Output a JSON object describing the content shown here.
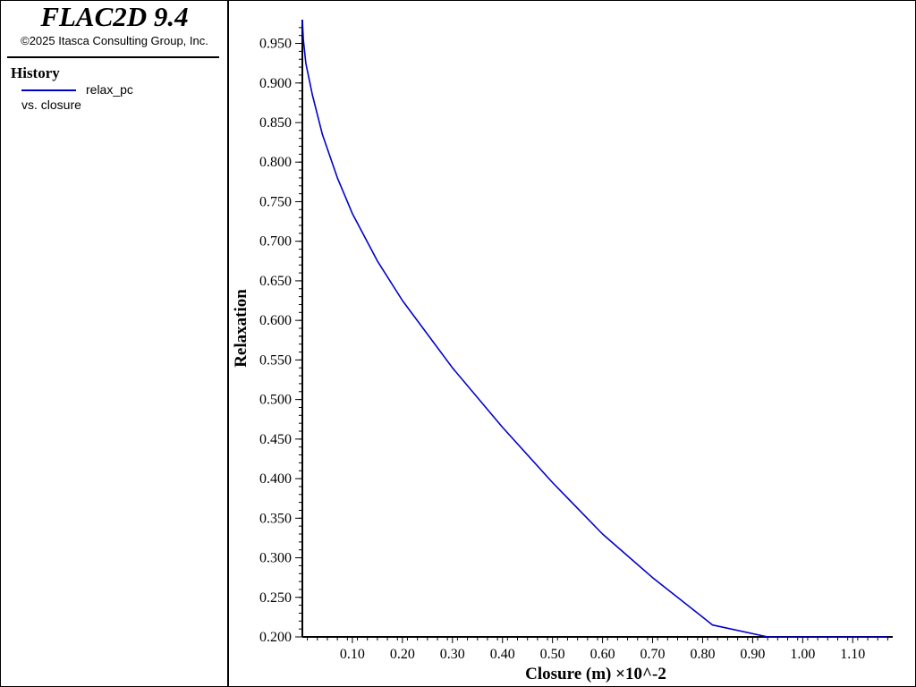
{
  "app": {
    "title": "FLAC2D 9.4",
    "copyright": "©2025 Itasca Consulting Group, Inc."
  },
  "legend": {
    "heading": "History",
    "series_label": "relax_pc",
    "vs_label": "vs. closure",
    "line_color": "#0000cc"
  },
  "chart_data": {
    "type": "line",
    "xlabel": "Closure (m) ×10^-2",
    "ylabel": "Relaxation",
    "xlim": [
      0.0,
      1.18
    ],
    "ylim": [
      0.2,
      0.98
    ],
    "x_ticks": [
      "0.10",
      "0.20",
      "0.30",
      "0.40",
      "0.50",
      "0.60",
      "0.70",
      "0.80",
      "0.90",
      "1.00",
      "1.10"
    ],
    "x_tick_values": [
      0.1,
      0.2,
      0.3,
      0.4,
      0.5,
      0.6,
      0.7,
      0.8,
      0.9,
      1.0,
      1.1
    ],
    "y_ticks": [
      "0.200",
      "0.250",
      "0.300",
      "0.350",
      "0.400",
      "0.450",
      "0.500",
      "0.550",
      "0.600",
      "0.650",
      "0.700",
      "0.750",
      "0.800",
      "0.850",
      "0.900",
      "0.950"
    ],
    "y_tick_values": [
      0.2,
      0.25,
      0.3,
      0.35,
      0.4,
      0.45,
      0.5,
      0.55,
      0.6,
      0.65,
      0.7,
      0.75,
      0.8,
      0.85,
      0.9,
      0.95
    ],
    "series": [
      {
        "name": "relax_pc",
        "color": "#0000cc",
        "x": [
          0.0,
          0.002,
          0.007,
          0.02,
          0.04,
          0.07,
          0.1,
          0.15,
          0.2,
          0.3,
          0.4,
          0.5,
          0.6,
          0.7,
          0.8,
          0.82,
          0.93,
          1.0,
          1.1,
          1.17
        ],
        "y": [
          0.98,
          0.955,
          0.925,
          0.885,
          0.835,
          0.78,
          0.735,
          0.675,
          0.625,
          0.54,
          0.465,
          0.395,
          0.33,
          0.275,
          0.225,
          0.215,
          0.2,
          0.2,
          0.2,
          0.2
        ]
      }
    ]
  }
}
